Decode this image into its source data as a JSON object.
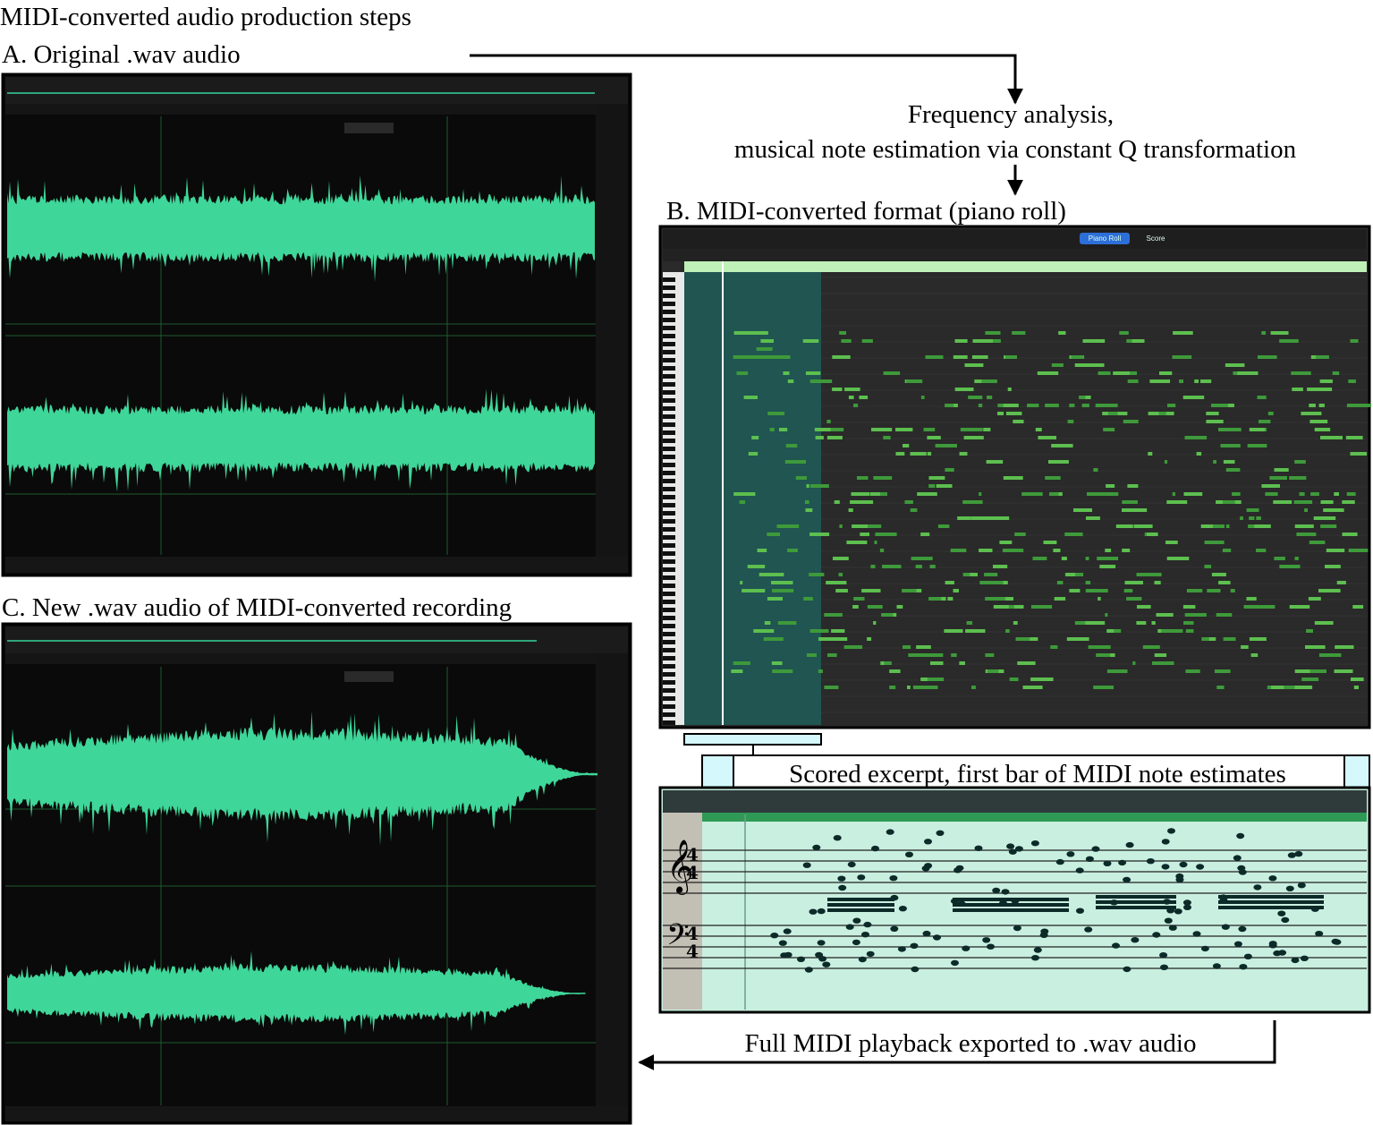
{
  "title": "MIDI-converted audio production steps",
  "panels": {
    "a": {
      "label": "A. Original .wav audio"
    },
    "b": {
      "label": "B. MIDI-converted format (piano roll)",
      "tabs": [
        "Piano Roll",
        "Score"
      ]
    },
    "c": {
      "label": "C. New .wav audio of MIDI-converted recording"
    }
  },
  "steps": {
    "analysis": [
      "Frequency analysis,",
      "musical note estimation via constant Q transformation"
    ],
    "excerpt": "Scored excerpt, first bar of MIDI note estimates",
    "export": "Full MIDI playback exported to .wav audio"
  }
}
